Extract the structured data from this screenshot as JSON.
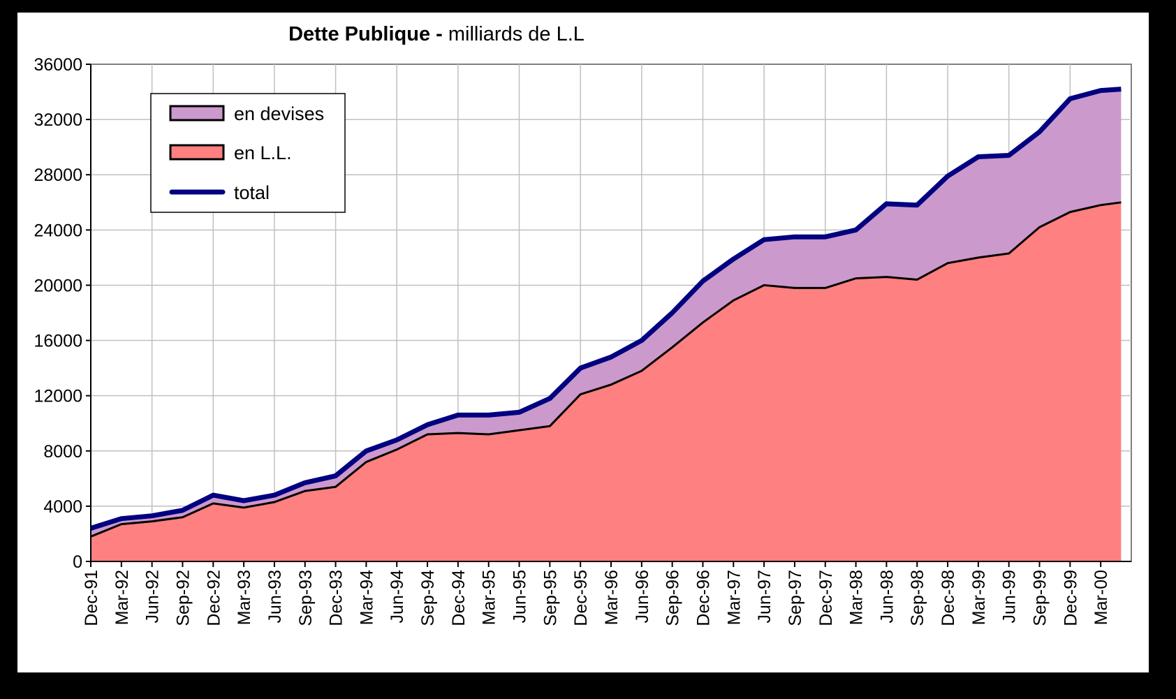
{
  "chart_data": {
    "type": "area",
    "title": "Dette Publique",
    "title_separator": " - ",
    "subtitle": "milliards de L.L",
    "ylim": [
      0,
      36000
    ],
    "yticks": [
      "0",
      "4000",
      "8000",
      "12000",
      "16000",
      "20000",
      "24000",
      "28000",
      "32000",
      "36000"
    ],
    "xticks": [
      "Dec-91",
      "Mar-92",
      "Jun-92",
      "Sep-92",
      "Dec-92",
      "Mar-93",
      "Jun-93",
      "Sep-93",
      "Dec-93",
      "Mar-94",
      "Jun-94",
      "Sep-94",
      "Dec-94",
      "Mar-95",
      "Jun-95",
      "Sep-95",
      "Dec-95",
      "Mar-96",
      "Jun-96",
      "Sep-96",
      "Dec-96",
      "Mar-97",
      "Jun-97",
      "Sep-97",
      "Dec-97",
      "Mar-98",
      "Jun-98",
      "Sep-98",
      "Dec-98",
      "Mar-99",
      "Jun-99",
      "Sep-99",
      "Dec-99",
      "Mar-00"
    ],
    "grid": true,
    "legend_position": "top-left",
    "series": [
      {
        "name": "en devises",
        "color": "#cc99cc",
        "role": "area-top"
      },
      {
        "name": "en L.L.",
        "color": "#ff8080",
        "role": "area-bottom"
      },
      {
        "name": "total",
        "color": "#000080",
        "role": "line"
      }
    ],
    "x_months": [
      0,
      3,
      6,
      9,
      12,
      15,
      18,
      21,
      24,
      27,
      30,
      33,
      36,
      39,
      42,
      45,
      48,
      51,
      54,
      57,
      60,
      63,
      66,
      69,
      72,
      75,
      78,
      81,
      84,
      87,
      90,
      93,
      96,
      99,
      101
    ],
    "en_LL": [
      1800,
      2700,
      2900,
      3200,
      4200,
      3900,
      4300,
      5100,
      5400,
      7200,
      8100,
      9200,
      9300,
      9200,
      9500,
      9800,
      12100,
      12800,
      13800,
      15500,
      17300,
      18900,
      20000,
      19800,
      19800,
      20500,
      20600,
      20400,
      21600,
      22000,
      22300,
      24200,
      25300,
      25800,
      26000
    ],
    "total": [
      2400,
      3100,
      3300,
      3700,
      4800,
      4400,
      4800,
      5700,
      6200,
      8000,
      8800,
      9900,
      10600,
      10600,
      10800,
      11800,
      14000,
      14800,
      16000,
      18000,
      20300,
      21900,
      23300,
      23500,
      23500,
      24000,
      25900,
      25800,
      27900,
      29300,
      29400,
      31100,
      33500,
      34100,
      34200
    ]
  }
}
